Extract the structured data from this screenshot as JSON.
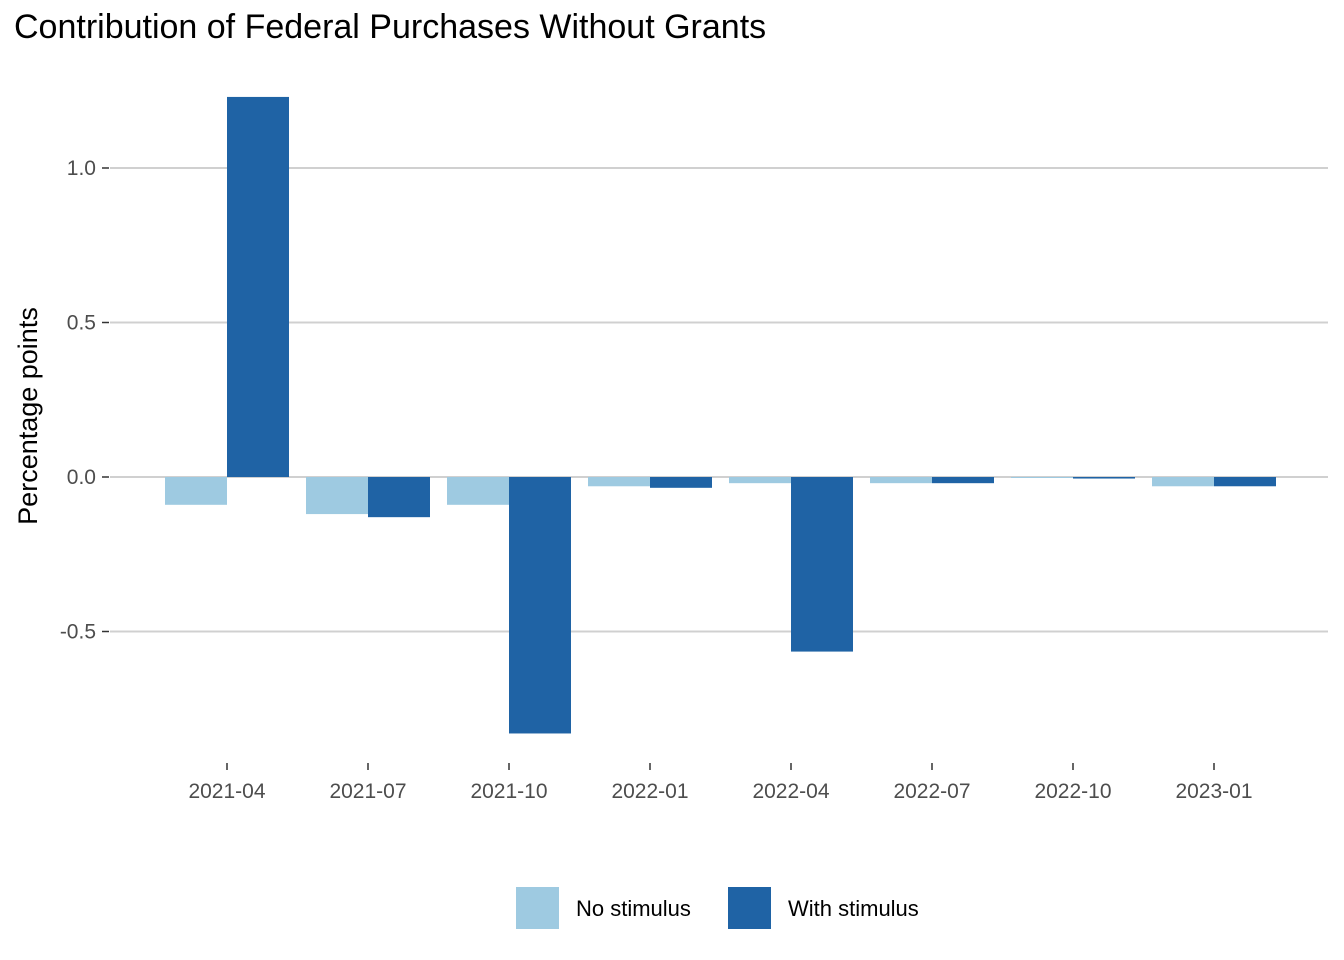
{
  "chart_data": {
    "type": "bar",
    "title": "Contribution of Federal Purchases Without Grants",
    "xlabel": "",
    "ylabel": "Percentage points",
    "categories": [
      "2021-04",
      "2021-07",
      "2021-10",
      "2022-01",
      "2022-04",
      "2022-07",
      "2022-10",
      "2023-01"
    ],
    "series": [
      {
        "name": "No stimulus",
        "color": "#9ecae1",
        "values": [
          -0.09,
          -0.12,
          -0.09,
          -0.03,
          -0.02,
          -0.02,
          0.0,
          -0.03
        ]
      },
      {
        "name": "With stimulus",
        "color": "#1f63a5",
        "values": [
          1.23,
          -0.13,
          -0.83,
          -0.035,
          -0.565,
          -0.02,
          -0.005,
          -0.03
        ]
      }
    ],
    "yticks": [
      -0.5,
      0.0,
      0.5,
      1.0
    ],
    "ytick_labels": [
      "-0.5",
      "0.0",
      "0.5",
      "1.0"
    ],
    "ylim": [
      -0.9,
      1.35
    ],
    "grid": true,
    "legend_position": "bottom"
  }
}
